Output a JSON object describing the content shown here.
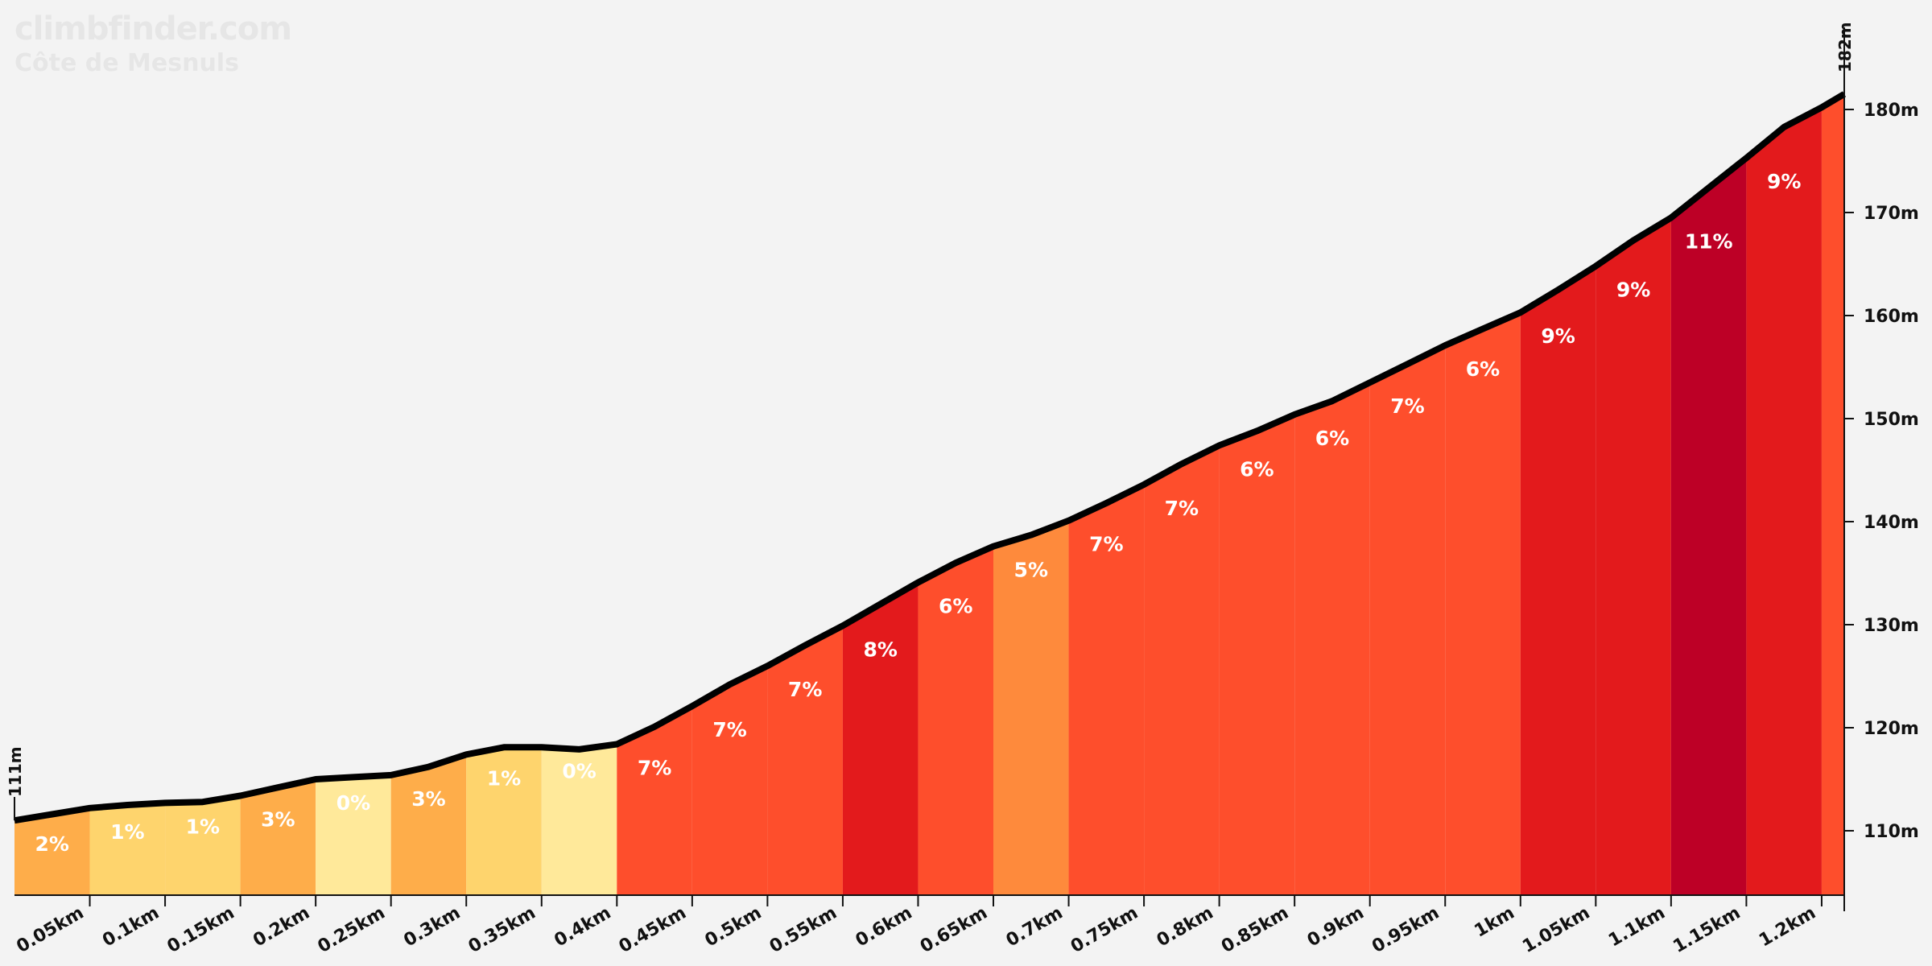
{
  "brand": {
    "site": "climbfinder.com",
    "climb": "Côte de Mesnuls"
  },
  "chart_data": {
    "type": "area",
    "title": "Côte de Mesnuls",
    "xlabel": "",
    "ylabel": "",
    "x_unit": "km",
    "y_unit": "m",
    "xlim": [
      0,
      1.215
    ],
    "ylim": [
      103,
      182
    ],
    "start_elevation_label": "111m",
    "end_elevation_label": "182m",
    "y_ticks": [
      110,
      120,
      130,
      140,
      150,
      160,
      170,
      180
    ],
    "y_tick_labels": [
      "110m",
      "120m",
      "130m",
      "140m",
      "150m",
      "160m",
      "170m",
      "180m"
    ],
    "x_ticks": [
      0.05,
      0.1,
      0.15,
      0.2,
      0.25,
      0.3,
      0.35,
      0.4,
      0.45,
      0.5,
      0.55,
      0.6,
      0.65,
      0.7,
      0.75,
      0.8,
      0.85,
      0.9,
      0.95,
      1.0,
      1.05,
      1.1,
      1.15,
      1.2
    ],
    "x_tick_labels": [
      "0.05km",
      "0.1km",
      "0.15km",
      "0.2km",
      "0.25km",
      "0.3km",
      "0.35km",
      "0.4km",
      "0.45km",
      "0.5km",
      "0.55km",
      "0.6km",
      "0.65km",
      "0.7km",
      "0.75km",
      "0.8km",
      "0.85km",
      "0.9km",
      "0.95km",
      "1km",
      "1.05km",
      "1.1km",
      "1.15km",
      "1.2km"
    ],
    "profile": {
      "x": [
        0,
        0.025,
        0.05,
        0.075,
        0.1,
        0.125,
        0.15,
        0.175,
        0.2,
        0.225,
        0.25,
        0.275,
        0.3,
        0.325,
        0.35,
        0.375,
        0.4,
        0.425,
        0.45,
        0.475,
        0.5,
        0.525,
        0.55,
        0.575,
        0.6,
        0.625,
        0.65,
        0.675,
        0.7,
        0.725,
        0.75,
        0.775,
        0.8,
        0.825,
        0.85,
        0.875,
        0.9,
        0.925,
        0.95,
        0.975,
        1.0,
        1.025,
        1.05,
        1.075,
        1.1,
        1.125,
        1.15,
        1.175,
        1.2,
        1.215
      ],
      "y": [
        111,
        111.6,
        112.2,
        112.5,
        112.7,
        112.8,
        113.4,
        114.2,
        115.0,
        115.2,
        115.4,
        116.2,
        117.4,
        118.1,
        118.1,
        117.9,
        118.4,
        120.1,
        122.1,
        124.2,
        126.0,
        128.0,
        129.9,
        132.0,
        134.1,
        136.0,
        137.6,
        138.7,
        140.1,
        141.8,
        143.6,
        145.6,
        147.4,
        148.8,
        150.4,
        151.7,
        153.5,
        155.3,
        157.1,
        158.7,
        160.3,
        162.5,
        164.8,
        167.3,
        169.5,
        172.4,
        175.3,
        178.3,
        180.2,
        181.5
      ]
    },
    "segments": [
      {
        "start": 0.0,
        "end": 0.05,
        "gradient": "2%",
        "color": "#fead4a"
      },
      {
        "start": 0.05,
        "end": 0.1,
        "gradient": "1%",
        "color": "#fed46d"
      },
      {
        "start": 0.1,
        "end": 0.15,
        "gradient": "1%",
        "color": "#fed46d"
      },
      {
        "start": 0.15,
        "end": 0.2,
        "gradient": "3%",
        "color": "#fead4a"
      },
      {
        "start": 0.2,
        "end": 0.25,
        "gradient": "0%",
        "color": "#ffe99a"
      },
      {
        "start": 0.25,
        "end": 0.3,
        "gradient": "3%",
        "color": "#fead4a"
      },
      {
        "start": 0.3,
        "end": 0.35,
        "gradient": "1%",
        "color": "#fed46d"
      },
      {
        "start": 0.35,
        "end": 0.4,
        "gradient": "0%",
        "color": "#ffe99a"
      },
      {
        "start": 0.4,
        "end": 0.45,
        "gradient": "7%",
        "color": "#fe4e2c"
      },
      {
        "start": 0.45,
        "end": 0.5,
        "gradient": "7%",
        "color": "#fe4e2c"
      },
      {
        "start": 0.5,
        "end": 0.55,
        "gradient": "7%",
        "color": "#fe4e2c"
      },
      {
        "start": 0.55,
        "end": 0.6,
        "gradient": "8%",
        "color": "#e31a1c"
      },
      {
        "start": 0.6,
        "end": 0.65,
        "gradient": "6%",
        "color": "#fe4e2c"
      },
      {
        "start": 0.65,
        "end": 0.7,
        "gradient": "5%",
        "color": "#fe8a3c"
      },
      {
        "start": 0.7,
        "end": 0.75,
        "gradient": "7%",
        "color": "#fe4e2c"
      },
      {
        "start": 0.75,
        "end": 0.8,
        "gradient": "7%",
        "color": "#fe4e2c"
      },
      {
        "start": 0.8,
        "end": 0.85,
        "gradient": "6%",
        "color": "#fe4e2c"
      },
      {
        "start": 0.85,
        "end": 0.9,
        "gradient": "6%",
        "color": "#fe4e2c"
      },
      {
        "start": 0.9,
        "end": 0.95,
        "gradient": "7%",
        "color": "#fe4e2c"
      },
      {
        "start": 0.95,
        "end": 1.0,
        "gradient": "6%",
        "color": "#fe4e2c"
      },
      {
        "start": 1.0,
        "end": 1.05,
        "gradient": "9%",
        "color": "#e31a1c"
      },
      {
        "start": 1.05,
        "end": 1.1,
        "gradient": "9%",
        "color": "#e31a1c"
      },
      {
        "start": 1.1,
        "end": 1.15,
        "gradient": "11%",
        "color": "#bd0026"
      },
      {
        "start": 1.15,
        "end": 1.2,
        "gradient": "9%",
        "color": "#e31a1c"
      },
      {
        "start": 1.2,
        "end": 1.215,
        "gradient": "",
        "color": "#fe4e2c"
      }
    ],
    "grid": false,
    "legend": "none"
  }
}
